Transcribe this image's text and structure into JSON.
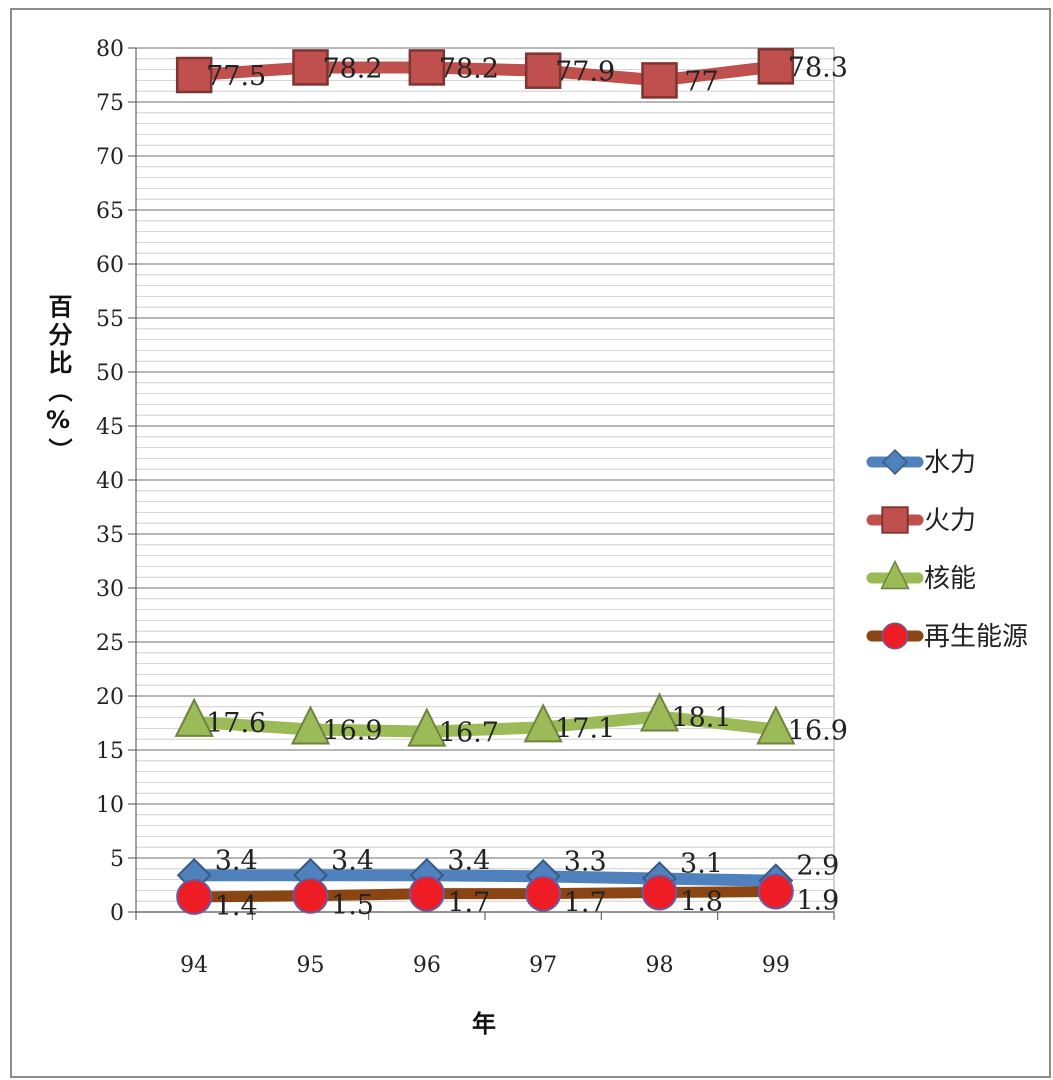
{
  "chart_data": {
    "type": "line",
    "categories": [
      "94",
      "95",
      "96",
      "97",
      "98",
      "99"
    ],
    "ylabel": "百分比（%）",
    "xlabel": "年",
    "ylim": [
      0,
      80
    ],
    "yticks": [
      0,
      5,
      10,
      15,
      20,
      25,
      30,
      35,
      40,
      45,
      50,
      55,
      60,
      65,
      70,
      75,
      80
    ],
    "grid": true,
    "legend_position": "right",
    "series": [
      {
        "name": "水力",
        "values": [
          3.4,
          3.4,
          3.4,
          3.3,
          3.1,
          2.9
        ],
        "labels": [
          "3.4",
          "3.4",
          "3.4",
          "3.3",
          "3.1",
          "2.9"
        ],
        "marker": "diamond",
        "color": "#4f81bd"
      },
      {
        "name": "火力",
        "values": [
          77.5,
          78.2,
          78.2,
          77.9,
          77,
          78.3
        ],
        "labels": [
          "77.5",
          "78.2",
          "78.2",
          "77.9",
          "77",
          "78.3"
        ],
        "marker": "square",
        "color": "#c0504d"
      },
      {
        "name": "核能",
        "values": [
          17.6,
          16.9,
          16.7,
          17.1,
          18.1,
          16.9
        ],
        "labels": [
          "17.6",
          "16.9",
          "16.7",
          "17.1",
          "18.1",
          "16.9"
        ],
        "marker": "triangle",
        "color": "#9bbb59"
      },
      {
        "name": "再生能源",
        "values": [
          1.4,
          1.5,
          1.7,
          1.7,
          1.8,
          1.9
        ],
        "labels": [
          "1.4",
          "1.5",
          "1.7",
          "1.7",
          "1.8",
          "1.9"
        ],
        "marker": "circle",
        "color": "#8b4513"
      }
    ]
  }
}
